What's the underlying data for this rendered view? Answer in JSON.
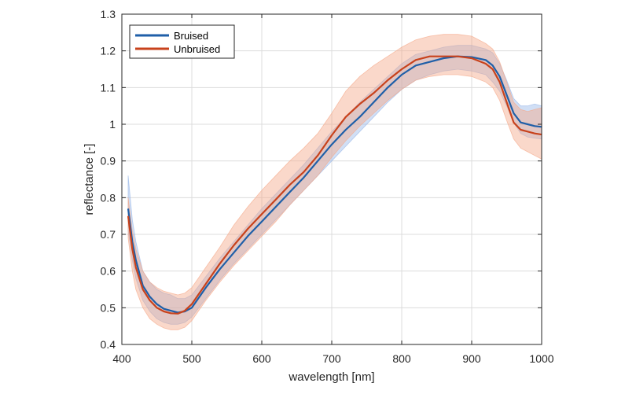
{
  "chart_data": {
    "type": "line",
    "title": "",
    "xlabel": "wavelength [nm]",
    "ylabel": "reflectance [-]",
    "xlim": [
      400,
      1000
    ],
    "ylim": [
      0.4,
      1.3
    ],
    "xticks": [
      400,
      500,
      600,
      700,
      800,
      900,
      1000
    ],
    "yticks": [
      0.4,
      0.5,
      0.6,
      0.7,
      0.8,
      0.9,
      1,
      1.1,
      1.2,
      1.3
    ],
    "xtick_labels": [
      "400",
      "500",
      "600",
      "700",
      "800",
      "900",
      "1000"
    ],
    "ytick_labels": [
      "0.4",
      "0.5",
      "0.6",
      "0.7",
      "0.8",
      "0.9",
      "1",
      "1.1",
      "1.2",
      "1.3"
    ],
    "grid": true,
    "legend_position": "top-left",
    "series": [
      {
        "name": "Bruised",
        "color": "#1f5fa8",
        "band_color": "#9ab8e8",
        "x": [
          409,
          415,
          420,
          430,
          440,
          450,
          460,
          470,
          480,
          490,
          500,
          520,
          540,
          560,
          580,
          600,
          620,
          640,
          660,
          680,
          700,
          720,
          740,
          760,
          780,
          800,
          820,
          840,
          860,
          880,
          900,
          920,
          930,
          940,
          950,
          960,
          970,
          980,
          990,
          1000
        ],
        "values": [
          0.77,
          0.68,
          0.63,
          0.56,
          0.53,
          0.51,
          0.497,
          0.492,
          0.487,
          0.49,
          0.5,
          0.555,
          0.605,
          0.65,
          0.695,
          0.735,
          0.775,
          0.815,
          0.855,
          0.9,
          0.945,
          0.985,
          1.02,
          1.06,
          1.1,
          1.135,
          1.16,
          1.17,
          1.18,
          1.185,
          1.183,
          1.175,
          1.16,
          1.13,
          1.08,
          1.03,
          1.005,
          1.0,
          0.995,
          0.993
        ],
        "lower": [
          0.71,
          0.63,
          0.58,
          0.52,
          0.49,
          0.47,
          0.46,
          0.455,
          0.455,
          0.46,
          0.475,
          0.525,
          0.575,
          0.62,
          0.66,
          0.7,
          0.74,
          0.78,
          0.82,
          0.86,
          0.9,
          0.94,
          0.98,
          1.02,
          1.06,
          1.095,
          1.12,
          1.135,
          1.145,
          1.15,
          1.145,
          1.135,
          1.115,
          1.09,
          1.05,
          1.005,
          0.975,
          0.965,
          0.962,
          0.96
        ],
        "upper": [
          0.86,
          0.74,
          0.68,
          0.6,
          0.57,
          0.55,
          0.54,
          0.535,
          0.525,
          0.525,
          0.535,
          0.585,
          0.635,
          0.68,
          0.725,
          0.77,
          0.81,
          0.85,
          0.89,
          0.935,
          0.98,
          1.02,
          1.06,
          1.095,
          1.13,
          1.165,
          1.19,
          1.2,
          1.21,
          1.215,
          1.215,
          1.205,
          1.195,
          1.165,
          1.12,
          1.07,
          1.05,
          1.05,
          1.055,
          1.05
        ]
      },
      {
        "name": "Unbruised",
        "color": "#c8421c",
        "band_color": "#f5a98a",
        "x": [
          409,
          415,
          420,
          430,
          440,
          450,
          460,
          470,
          480,
          490,
          500,
          520,
          540,
          560,
          580,
          600,
          620,
          640,
          660,
          680,
          700,
          720,
          740,
          760,
          780,
          800,
          820,
          840,
          860,
          880,
          900,
          920,
          930,
          940,
          950,
          960,
          970,
          980,
          990,
          1000
        ],
        "values": [
          0.75,
          0.66,
          0.61,
          0.55,
          0.52,
          0.5,
          0.49,
          0.485,
          0.484,
          0.492,
          0.51,
          0.565,
          0.62,
          0.67,
          0.715,
          0.755,
          0.795,
          0.835,
          0.87,
          0.915,
          0.97,
          1.02,
          1.055,
          1.085,
          1.12,
          1.15,
          1.175,
          1.185,
          1.185,
          1.185,
          1.18,
          1.165,
          1.15,
          1.115,
          1.06,
          1.005,
          0.985,
          0.98,
          0.975,
          0.972
        ],
        "lower": [
          0.69,
          0.6,
          0.55,
          0.5,
          0.47,
          0.455,
          0.445,
          0.44,
          0.44,
          0.447,
          0.465,
          0.52,
          0.57,
          0.615,
          0.655,
          0.695,
          0.735,
          0.78,
          0.82,
          0.86,
          0.91,
          0.955,
          0.995,
          1.03,
          1.065,
          1.095,
          1.12,
          1.13,
          1.135,
          1.135,
          1.13,
          1.115,
          1.1,
          1.065,
          1.01,
          0.96,
          0.935,
          0.925,
          0.915,
          0.905
        ],
        "upper": [
          0.8,
          0.71,
          0.66,
          0.6,
          0.57,
          0.555,
          0.545,
          0.54,
          0.535,
          0.54,
          0.555,
          0.61,
          0.665,
          0.725,
          0.775,
          0.82,
          0.86,
          0.9,
          0.935,
          0.975,
          1.03,
          1.09,
          1.13,
          1.16,
          1.185,
          1.21,
          1.23,
          1.24,
          1.245,
          1.245,
          1.24,
          1.22,
          1.205,
          1.17,
          1.115,
          1.06,
          1.04,
          1.035,
          1.04,
          1.045
        ]
      }
    ]
  }
}
